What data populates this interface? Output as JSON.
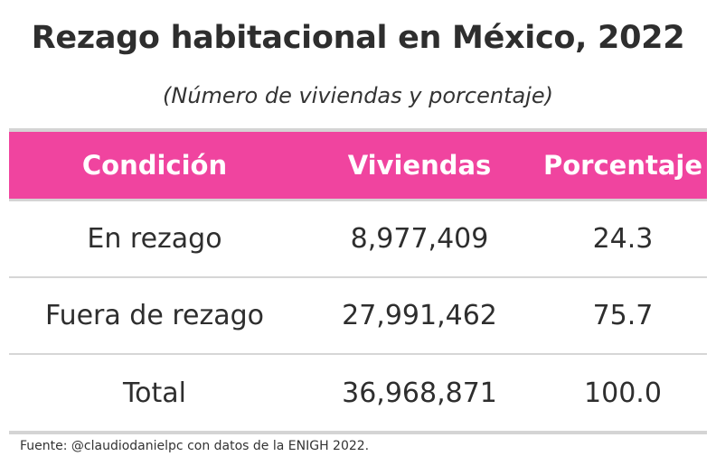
{
  "chart_data": {
    "type": "table",
    "title": "Rezago habitacional en México, 2022",
    "subtitle": "(Número de viviendas y porcentaje)",
    "columns": [
      "Condición",
      "Viviendas",
      "Porcentaje"
    ],
    "rows": [
      {
        "condicion": "En rezago",
        "viviendas": "8,977,409",
        "porcentaje": "24.3"
      },
      {
        "condicion": "Fuera de rezago",
        "viviendas": "27,991,462",
        "porcentaje": "75.7"
      },
      {
        "condicion": "Total",
        "viviendas": "36,968,871",
        "porcentaje": "100.0"
      }
    ],
    "source": "Fuente: @claudiodanielpc con datos de la ENIGH 2022.",
    "colors": {
      "header_bg": "#f0449f",
      "header_text": "#ffffff",
      "rule": "#d4d4d4"
    }
  }
}
